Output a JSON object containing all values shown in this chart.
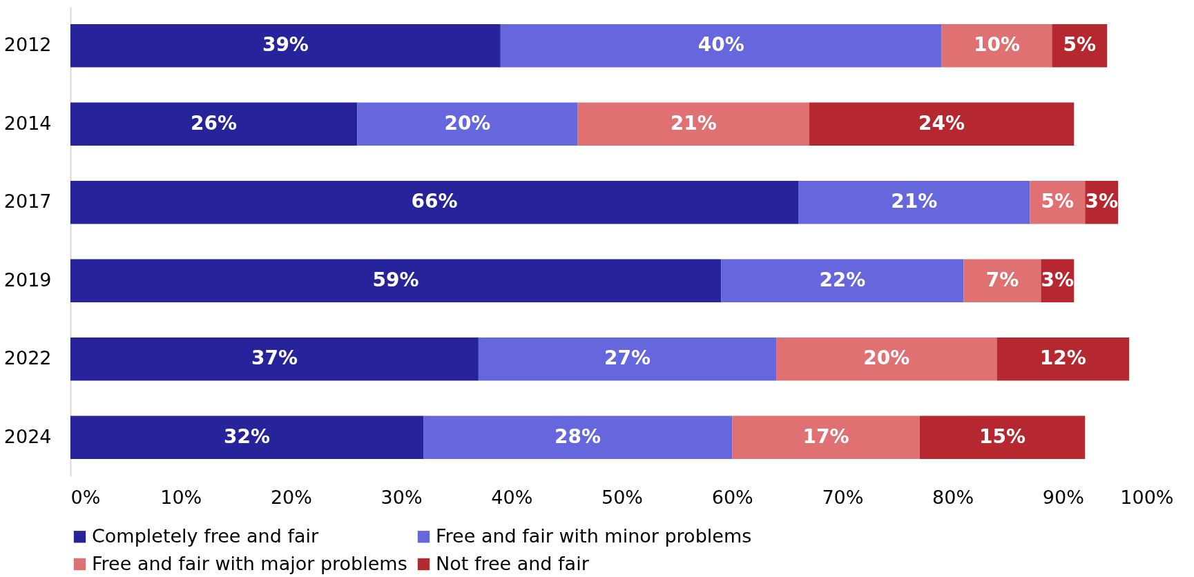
{
  "chart_data": {
    "type": "bar",
    "orientation": "horizontal",
    "stacked": true,
    "legend": "bottom",
    "grid": false,
    "categories": [
      "2012",
      "2014",
      "2017",
      "2019",
      "2022",
      "2024"
    ],
    "xlim": [
      0,
      100
    ],
    "xticks": [
      {
        "value": 0,
        "label": "0%"
      },
      {
        "value": 10,
        "label": "10%"
      },
      {
        "value": 20,
        "label": "20%"
      },
      {
        "value": 30,
        "label": "30%"
      },
      {
        "value": 40,
        "label": "40%"
      },
      {
        "value": 50,
        "label": "50%"
      },
      {
        "value": 60,
        "label": "60%"
      },
      {
        "value": 70,
        "label": "70%"
      },
      {
        "value": 80,
        "label": "80%"
      },
      {
        "value": 90,
        "label": "90%"
      },
      {
        "value": 100,
        "label": "100%"
      }
    ],
    "series": [
      {
        "name": "Completely free and fair",
        "color": "#27249b",
        "values": [
          39,
          26,
          66,
          59,
          37,
          32
        ],
        "value_labels": [
          "39%",
          "26%",
          "66%",
          "59%",
          "37%",
          "32%"
        ]
      },
      {
        "name": "Free and fair with minor problems",
        "color": "#6666dd",
        "values": [
          40,
          20,
          21,
          22,
          27,
          28
        ],
        "value_labels": [
          "40%",
          "20%",
          "21%",
          "22%",
          "27%",
          "28%"
        ]
      },
      {
        "name": "Free and fair with major problems",
        "color": "#e07173",
        "values": [
          10,
          21,
          5,
          7,
          20,
          17
        ],
        "value_labels": [
          "10%",
          "21%",
          "5%",
          "7%",
          "20%",
          "17%"
        ]
      },
      {
        "name": "Not free and fair",
        "color": "#b5282f",
        "values": [
          5,
          24,
          3,
          3,
          12,
          15
        ],
        "value_labels": [
          "5%",
          "24%",
          "3%",
          "3%",
          "12%",
          "15%"
        ]
      }
    ]
  }
}
